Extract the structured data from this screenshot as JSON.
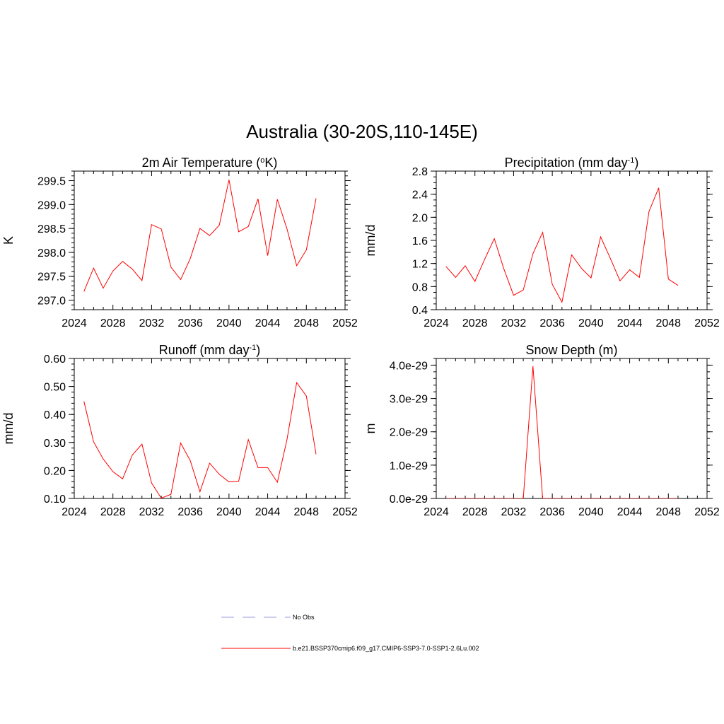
{
  "title": "Australia (30-20S,110-145E)",
  "legend": {
    "items": [
      {
        "label": "No Obs",
        "color": "#9999dd",
        "dash": true
      },
      {
        "label": "b.e21.BSSP370cmip6.f09_g17.CMIP6-SSP3-7.0-SSP1-2.6Lu.002",
        "color": "#ff0000",
        "dash": false
      }
    ]
  },
  "chart_data": [
    {
      "type": "line",
      "title": "2m Air Temperature (°K)",
      "title_parts": {
        "pre": "2m Air Temperature (",
        "sup": "o",
        "post": "K)"
      },
      "ylabel": "K",
      "xlim": [
        2024,
        2052
      ],
      "ylim": [
        296.8,
        299.7
      ],
      "xticks": [
        2024,
        2028,
        2032,
        2036,
        2040,
        2044,
        2048,
        2052
      ],
      "yticks": [
        297.0,
        297.5,
        298.0,
        298.5,
        299.0,
        299.5
      ],
      "ytick_labels": [
        "297.0",
        "297.5",
        "298.0",
        "298.5",
        "299.0",
        "299.5"
      ],
      "yminor_step": 0.1,
      "x": [
        2025,
        2026,
        2027,
        2028,
        2029,
        2030,
        2031,
        2032,
        2033,
        2034,
        2035,
        2036,
        2037,
        2038,
        2039,
        2040,
        2041,
        2042,
        2043,
        2044,
        2045,
        2046,
        2047,
        2048,
        2049
      ],
      "series": [
        {
          "name": "b.e21.BSSP370cmip6.f09_g17.CMIP6-SSP3-7.0-SSP1-2.6Lu.002",
          "color": "#ff0000",
          "values": [
            297.18,
            297.67,
            297.25,
            297.61,
            297.81,
            297.65,
            297.41,
            298.58,
            298.49,
            297.69,
            297.43,
            297.87,
            298.5,
            298.35,
            298.57,
            299.52,
            298.43,
            298.54,
            299.12,
            297.93,
            299.11,
            298.49,
            297.72,
            298.05,
            299.13
          ]
        }
      ]
    },
    {
      "type": "line",
      "title": "Precipitation (mm day-1)",
      "title_parts": {
        "pre": "Precipitation (mm day",
        "sup": "-1",
        "post": ")"
      },
      "ylabel": "mm/d",
      "xlim": [
        2024,
        2052
      ],
      "ylim": [
        0.4,
        2.8
      ],
      "xticks": [
        2024,
        2028,
        2032,
        2036,
        2040,
        2044,
        2048,
        2052
      ],
      "yticks": [
        0.4,
        0.8,
        1.2,
        1.6,
        2.0,
        2.4,
        2.8
      ],
      "ytick_labels": [
        "0.4",
        "0.8",
        "1.2",
        "1.6",
        "2.0",
        "2.4",
        "2.8"
      ],
      "yminor_step": 0.1,
      "x": [
        2025,
        2026,
        2027,
        2028,
        2029,
        2030,
        2031,
        2032,
        2033,
        2034,
        2035,
        2036,
        2037,
        2038,
        2039,
        2040,
        2041,
        2042,
        2043,
        2044,
        2045,
        2046,
        2047,
        2048,
        2049
      ],
      "series": [
        {
          "name": "b.e21.BSSP370cmip6.f09_g17.CMIP6-SSP3-7.0-SSP1-2.6Lu.002",
          "color": "#ff0000",
          "values": [
            1.15,
            0.96,
            1.16,
            0.89,
            1.27,
            1.63,
            1.1,
            0.65,
            0.74,
            1.37,
            1.74,
            0.84,
            0.53,
            1.35,
            1.12,
            0.95,
            1.66,
            1.29,
            0.9,
            1.09,
            0.96,
            2.1,
            2.51,
            0.93,
            0.82
          ]
        }
      ]
    },
    {
      "type": "line",
      "title": "Runoff (mm day-1)",
      "title_parts": {
        "pre": "Runoff (mm day",
        "sup": "-1",
        "post": ")"
      },
      "ylabel": "mm/d",
      "xlim": [
        2024,
        2052
      ],
      "ylim": [
        0.1,
        0.6
      ],
      "xticks": [
        2024,
        2028,
        2032,
        2036,
        2040,
        2044,
        2048,
        2052
      ],
      "yticks": [
        0.1,
        0.2,
        0.3,
        0.4,
        0.5,
        0.6
      ],
      "ytick_labels": [
        "0.10",
        "0.20",
        "0.30",
        "0.40",
        "0.50",
        "0.60"
      ],
      "yminor_step": 0.02,
      "x": [
        2025,
        2026,
        2027,
        2028,
        2029,
        2030,
        2031,
        2032,
        2033,
        2034,
        2035,
        2036,
        2037,
        2038,
        2039,
        2040,
        2041,
        2042,
        2043,
        2044,
        2045,
        2046,
        2047,
        2048,
        2049
      ],
      "series": [
        {
          "name": "b.e21.BSSP370cmip6.f09_g17.CMIP6-SSP3-7.0-SSP1-2.6Lu.002",
          "color": "#ff0000",
          "values": [
            0.447,
            0.302,
            0.241,
            0.196,
            0.17,
            0.255,
            0.294,
            0.155,
            0.101,
            0.115,
            0.298,
            0.235,
            0.124,
            0.226,
            0.186,
            0.159,
            0.161,
            0.31,
            0.21,
            0.21,
            0.158,
            0.31,
            0.514,
            0.466,
            0.258
          ]
        }
      ]
    },
    {
      "type": "line",
      "title": "Snow Depth (m)",
      "title_parts": {
        "pre": "Snow Depth (m)",
        "sup": "",
        "post": ""
      },
      "ylabel": "m",
      "xlim": [
        2024,
        2052
      ],
      "ylim": [
        0,
        4.2e-29
      ],
      "xticks": [
        2024,
        2028,
        2032,
        2036,
        2040,
        2044,
        2048,
        2052
      ],
      "yticks": [
        0,
        1e-29,
        2e-29,
        3e-29,
        4e-29
      ],
      "ytick_labels": [
        "0.0e-29",
        "1.0e-29",
        "2.0e-29",
        "3.0e-29",
        "4.0e-29"
      ],
      "yminor_step": 2e-30,
      "x": [
        2025,
        2026,
        2027,
        2028,
        2029,
        2030,
        2031,
        2032,
        2033,
        2034,
        2035,
        2036,
        2037,
        2038,
        2039,
        2040,
        2041,
        2042,
        2043,
        2044,
        2045,
        2046,
        2047,
        2048,
        2049
      ],
      "series": [
        {
          "name": "b.e21.BSSP370cmip6.f09_g17.CMIP6-SSP3-7.0-SSP1-2.6Lu.002",
          "color": "#ff0000",
          "values": [
            0,
            0,
            0,
            0,
            0,
            0,
            0,
            0,
            0,
            3.97e-29,
            0,
            0,
            0,
            0,
            0,
            0,
            0,
            0,
            0,
            0,
            0,
            0,
            0,
            0,
            0
          ]
        }
      ]
    }
  ]
}
